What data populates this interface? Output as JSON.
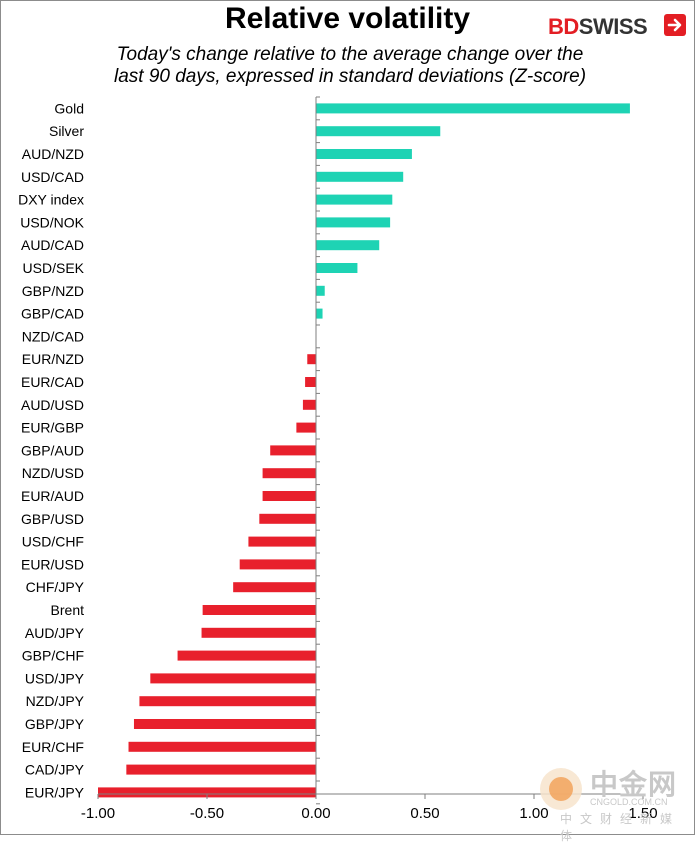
{
  "header": {
    "title": "Relative volatility",
    "subtitle_line1": "Today's change relative to the  average change over the",
    "subtitle_line2": "last 90 days, expressed in standard deviations (Z-score)"
  },
  "logo": {
    "part1": "BD",
    "part2": "SWISS"
  },
  "watermark": {
    "name": "中金网",
    "url": "CNGOLD.COM.CN",
    "sub": "中文财经新媒体"
  },
  "colors": {
    "positive": "#1ed3b4",
    "negative": "#e8202c"
  },
  "chart_data": {
    "type": "bar",
    "orientation": "horizontal",
    "title": "Relative volatility",
    "xlim": [
      -1.0,
      1.5
    ],
    "xticks": [
      -1.0,
      -0.5,
      0.0,
      0.5,
      1.0,
      1.5
    ],
    "xtick_labels": [
      "-1.00",
      "-0.50",
      "0.00",
      "0.50",
      "1.00",
      "1.50"
    ],
    "grid": false,
    "categories": [
      "Gold",
      "Silver",
      "AUD/NZD",
      "USD/CAD",
      "DXY index",
      "USD/NOK",
      "AUD/CAD",
      "USD/SEK",
      "GBP/NZD",
      "GBP/CAD",
      "NZD/CAD",
      "EUR/NZD",
      "EUR/CAD",
      "AUD/USD",
      "EUR/GBP",
      "GBP/AUD",
      "NZD/USD",
      "EUR/AUD",
      "GBP/USD",
      "USD/CHF",
      "EUR/USD",
      "CHF/JPY",
      "Brent",
      "AUD/JPY",
      "GBP/CHF",
      "USD/JPY",
      "NZD/JPY",
      "GBP/JPY",
      "EUR/CHF",
      "CAD/JPY",
      "EUR/JPY"
    ],
    "values": [
      1.44,
      0.57,
      0.44,
      0.4,
      0.35,
      0.34,
      0.29,
      0.19,
      0.04,
      0.03,
      0.0,
      -0.04,
      -0.05,
      -0.06,
      -0.09,
      -0.21,
      -0.245,
      -0.245,
      -0.26,
      -0.31,
      -0.35,
      -0.38,
      -0.52,
      -0.525,
      -0.635,
      -0.76,
      -0.81,
      -0.835,
      -0.86,
      -0.87,
      -1.0
    ]
  }
}
